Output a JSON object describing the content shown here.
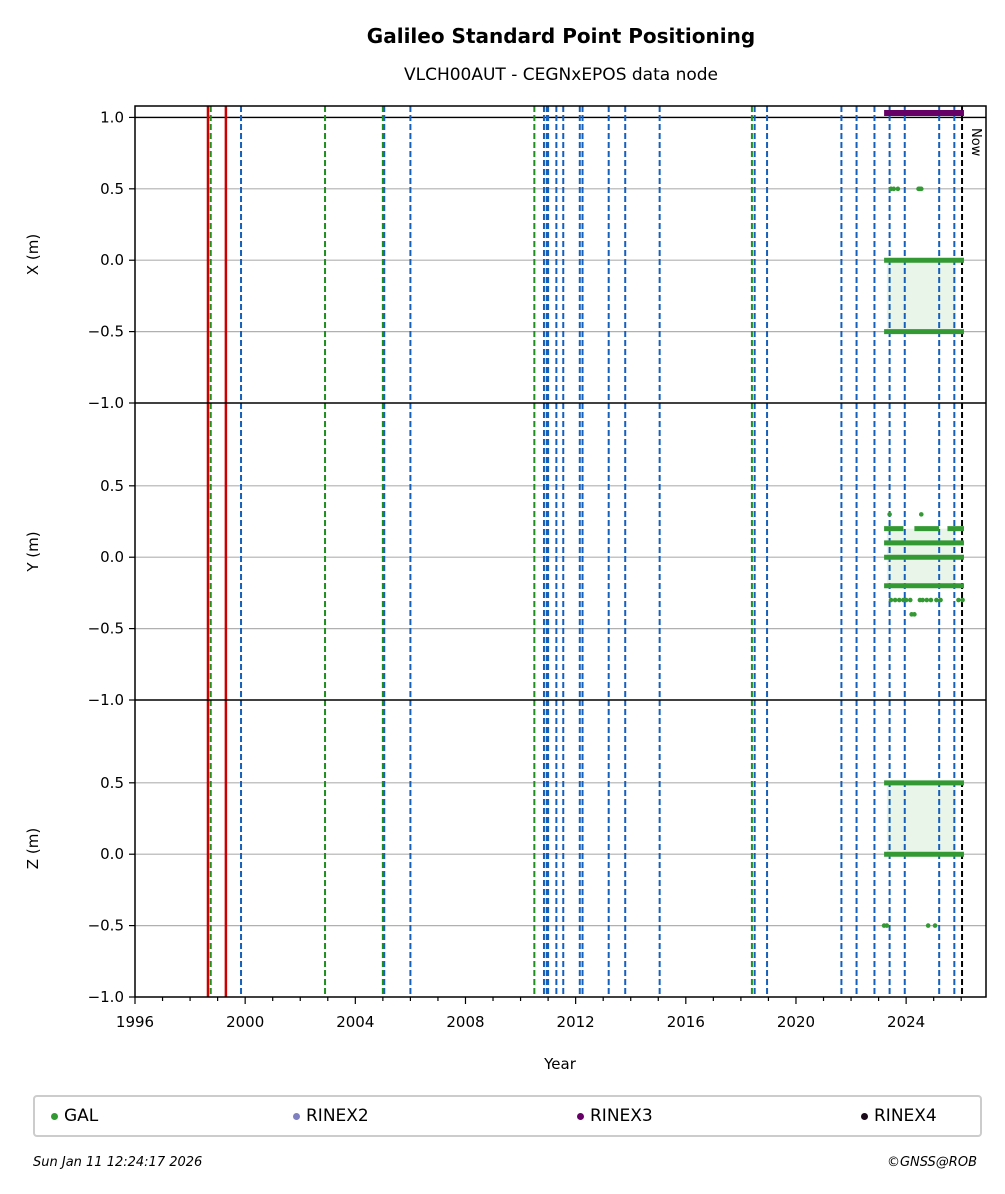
{
  "title": "Galileo Standard Point Positioning",
  "subtitle": "VLCH00AUT - CEGNxEPOS data node",
  "now_label": "Now",
  "xlabel": "Year",
  "footer_left": "Sun Jan 11 12:24:17 2026",
  "footer_right": "©GNSS@ROB",
  "legend": [
    {
      "label": "GAL",
      "color": "#339933"
    },
    {
      "label": "RINEX2",
      "color": "#8080c0"
    },
    {
      "label": "RINEX3",
      "color": "#660066"
    },
    {
      "label": "RINEX4",
      "color": "#1a0a1a"
    }
  ],
  "chart_data": {
    "type": "scatter",
    "x_range": [
      1996.0,
      2026.9
    ],
    "x_ticks": [
      1996,
      2000,
      2004,
      2008,
      2012,
      2016,
      2020,
      2024
    ],
    "now": 2026.03,
    "panels": [
      {
        "ylabel": "X (m)",
        "ylim": [
          -1.0,
          1.08
        ],
        "y_ticks": [
          1.0,
          0.5,
          0.0,
          -0.5,
          -1.0
        ],
        "y_tick_labels": [
          "1.0",
          "0.5",
          "0.0",
          "−0.5",
          "−1.0"
        ],
        "segments": [
          [
            2023.2,
            2026.1,
            0.0
          ],
          [
            2023.2,
            2026.1,
            -0.5
          ]
        ],
        "points": [
          [
            2023.45,
            0.5
          ],
          [
            2023.55,
            0.5
          ],
          [
            2023.7,
            0.5
          ],
          [
            2024.45,
            0.5
          ],
          [
            2024.5,
            0.5
          ],
          [
            2024.55,
            0.5
          ]
        ]
      },
      {
        "ylabel": "Y (m)",
        "ylim": [
          -1.0,
          1.08
        ],
        "y_ticks": [
          0.5,
          0.0,
          -0.5,
          -1.0
        ],
        "y_tick_labels": [
          "0.5",
          "0.0",
          "−0.5",
          "−1.0"
        ],
        "segments": [
          [
            2023.2,
            2026.1,
            0.1
          ],
          [
            2023.2,
            2026.1,
            0.0
          ],
          [
            2023.2,
            2026.1,
            -0.2
          ],
          [
            2023.2,
            2023.9,
            0.2
          ],
          [
            2024.3,
            2025.2,
            0.2
          ],
          [
            2025.5,
            2026.1,
            0.2
          ]
        ],
        "points": [
          [
            2023.4,
            0.3
          ],
          [
            2024.55,
            0.3
          ],
          [
            2023.45,
            -0.3
          ],
          [
            2023.6,
            -0.3
          ],
          [
            2023.75,
            -0.3
          ],
          [
            2023.9,
            -0.3
          ],
          [
            2024.0,
            -0.3
          ],
          [
            2024.15,
            -0.3
          ],
          [
            2024.5,
            -0.3
          ],
          [
            2024.6,
            -0.3
          ],
          [
            2024.75,
            -0.3
          ],
          [
            2024.9,
            -0.3
          ],
          [
            2025.1,
            -0.3
          ],
          [
            2025.25,
            -0.3
          ],
          [
            2025.9,
            -0.3
          ],
          [
            2026.05,
            -0.3
          ],
          [
            2024.2,
            -0.4
          ],
          [
            2024.3,
            -0.4
          ]
        ]
      },
      {
        "ylabel": "Z (m)",
        "ylim": [
          -1.0,
          1.08
        ],
        "y_ticks": [
          0.5,
          0.0,
          -0.5,
          -1.0
        ],
        "y_tick_labels": [
          "0.5",
          "0.0",
          "−0.5",
          "−1.0"
        ],
        "segments": [
          [
            2023.2,
            2026.1,
            0.5
          ],
          [
            2023.2,
            2026.1,
            0.0
          ]
        ],
        "points": [
          [
            2023.2,
            -0.5
          ],
          [
            2023.3,
            -0.5
          ],
          [
            2024.8,
            -0.5
          ],
          [
            2025.05,
            -0.5
          ]
        ]
      }
    ],
    "rinex3_segment": [
      2023.2,
      2026.1
    ],
    "vlines_red": [
      1998.65,
      1999.3
    ],
    "vlines_green": [
      1998.75,
      2002.9,
      2005.0,
      2010.5,
      2018.4
    ],
    "vlines_blue": [
      1999.85,
      2005.05,
      2006.0,
      2010.85,
      2010.95,
      2011.0,
      2011.3,
      2011.55,
      2012.15,
      2012.25,
      2013.2,
      2013.8,
      2015.05,
      2018.5,
      2018.95,
      2021.65,
      2022.2,
      2022.85,
      2023.4,
      2023.95,
      2025.2,
      2025.75
    ]
  }
}
